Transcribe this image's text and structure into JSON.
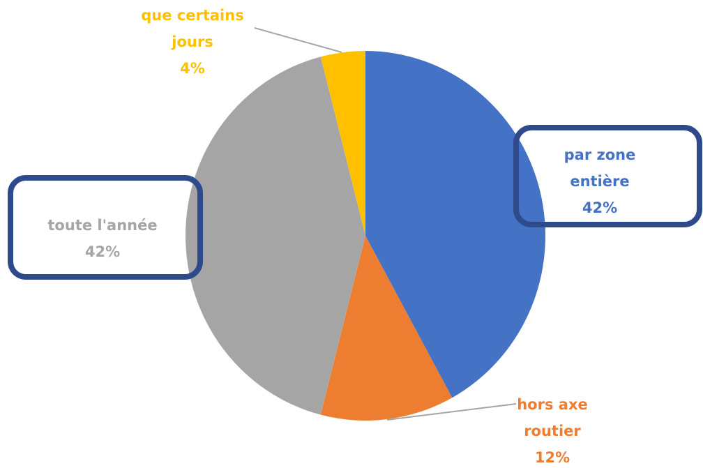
{
  "chart_data": {
    "type": "pie",
    "categories": [
      "par zone entière",
      "hors axe routier",
      "toute l'année",
      "que certains jours"
    ],
    "values": [
      42,
      12,
      42,
      4
    ],
    "value_labels": [
      "42%",
      "12%",
      "42%",
      "4%"
    ],
    "colors": [
      "#4472c4",
      "#ed7d31",
      "#a5a5a5",
      "#ffc000"
    ]
  }
}
